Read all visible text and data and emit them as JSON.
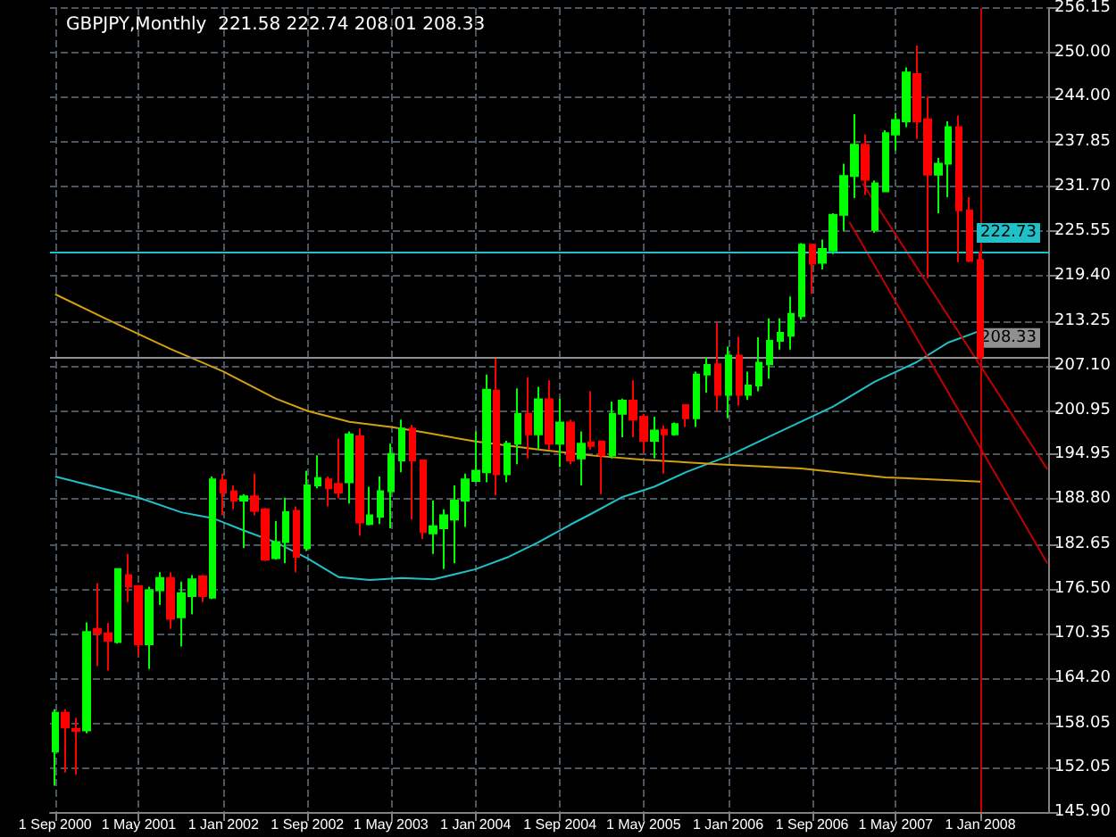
{
  "chart_data": {
    "type": "candlestick",
    "title": "GBPJPY,Monthly  221.58 222.74 208.01 208.33",
    "x": [
      "2000-09",
      "2000-10",
      "2000-11",
      "2000-12",
      "2001-01",
      "2001-02",
      "2001-03",
      "2001-04",
      "2001-05",
      "2001-06",
      "2001-07",
      "2001-08",
      "2001-09",
      "2001-10",
      "2001-11",
      "2001-12",
      "2002-01",
      "2002-02",
      "2002-03",
      "2002-04",
      "2002-05",
      "2002-06",
      "2002-07",
      "2002-08",
      "2002-09",
      "2002-10",
      "2002-11",
      "2002-12",
      "2003-01",
      "2003-02",
      "2003-03",
      "2003-04",
      "2003-05",
      "2003-06",
      "2003-07",
      "2003-08",
      "2003-09",
      "2003-10",
      "2003-11",
      "2003-12",
      "2004-01",
      "2004-02",
      "2004-03",
      "2004-04",
      "2004-05",
      "2004-06",
      "2004-07",
      "2004-08",
      "2004-09",
      "2004-10",
      "2004-11",
      "2004-12",
      "2005-01",
      "2005-02",
      "2005-03",
      "2005-04",
      "2005-05",
      "2005-06",
      "2005-07",
      "2005-08",
      "2005-09",
      "2005-10",
      "2005-11",
      "2005-12",
      "2006-01",
      "2006-02",
      "2006-03",
      "2006-04",
      "2006-05",
      "2006-06",
      "2006-07",
      "2006-08",
      "2006-09",
      "2006-10",
      "2006-11",
      "2006-12",
      "2007-01",
      "2007-02",
      "2007-03",
      "2007-04",
      "2007-05",
      "2007-06",
      "2007-07",
      "2007-08",
      "2007-09",
      "2007-10",
      "2007-11",
      "2007-12",
      "2008-01"
    ],
    "ohlc": [
      [
        154.2,
        160.0,
        149.5,
        159.5
      ],
      [
        159.5,
        160.0,
        151.3,
        157.5
      ],
      [
        157.3,
        158.8,
        151.0,
        157.0
      ],
      [
        157.1,
        171.9,
        156.7,
        170.6
      ],
      [
        171.0,
        177.3,
        165.9,
        170.4
      ],
      [
        170.4,
        171.8,
        165.3,
        169.4
      ],
      [
        169.2,
        179.3,
        169.0,
        179.2
      ],
      [
        178.4,
        181.3,
        174.7,
        176.8
      ],
      [
        176.9,
        177.0,
        167.3,
        168.9
      ],
      [
        168.9,
        176.8,
        165.5,
        176.3
      ],
      [
        176.3,
        178.8,
        174.3,
        178.0
      ],
      [
        178.0,
        178.8,
        171.0,
        172.4
      ],
      [
        172.6,
        177.5,
        168.6,
        175.9
      ],
      [
        175.5,
        178.4,
        173.0,
        177.8
      ],
      [
        178.2,
        178.4,
        174.7,
        175.5
      ],
      [
        175.3,
        191.9,
        175.1,
        191.5
      ],
      [
        191.4,
        192.3,
        186.6,
        189.7
      ],
      [
        189.9,
        190.7,
        187.4,
        188.6
      ],
      [
        188.6,
        189.5,
        182.1,
        189.2
      ],
      [
        189.2,
        192.3,
        186.6,
        187.2
      ],
      [
        187.4,
        187.6,
        180.3,
        180.5
      ],
      [
        180.7,
        185.8,
        180.5,
        182.9
      ],
      [
        182.9,
        189.0,
        180.0,
        187.0
      ],
      [
        187.2,
        187.8,
        178.8,
        180.9
      ],
      [
        182.1,
        192.7,
        181.7,
        190.7
      ],
      [
        190.7,
        194.8,
        190.3,
        191.7
      ],
      [
        191.5,
        191.9,
        187.8,
        190.3
      ],
      [
        190.9,
        197.1,
        188.9,
        189.7
      ],
      [
        191.1,
        198.1,
        188.2,
        197.7
      ],
      [
        197.4,
        198.5,
        183.8,
        185.6
      ],
      [
        185.4,
        190.5,
        185.2,
        186.6
      ],
      [
        186.4,
        191.9,
        185.4,
        189.9
      ],
      [
        189.9,
        196.4,
        184.8,
        195.0
      ],
      [
        194.1,
        199.7,
        192.5,
        198.5
      ],
      [
        198.5,
        199.0,
        186.0,
        194.1
      ],
      [
        194.1,
        194.1,
        183.3,
        184.3
      ],
      [
        184.1,
        188.6,
        181.3,
        185.1
      ],
      [
        184.8,
        187.4,
        179.2,
        186.6
      ],
      [
        186.0,
        190.7,
        180.0,
        188.6
      ],
      [
        188.6,
        192.3,
        185.0,
        191.5
      ],
      [
        191.3,
        198.1,
        191.1,
        192.7
      ],
      [
        192.5,
        205.9,
        191.1,
        203.8
      ],
      [
        203.7,
        208.1,
        189.3,
        192.2
      ],
      [
        192.2,
        196.8,
        191.1,
        196.4
      ],
      [
        196.4,
        204.0,
        193.6,
        200.5
      ],
      [
        200.5,
        205.5,
        194.4,
        197.7
      ],
      [
        197.7,
        204.2,
        195.6,
        202.5
      ],
      [
        202.5,
        205.1,
        195.6,
        196.4
      ],
      [
        196.4,
        202.6,
        193.2,
        199.3
      ],
      [
        199.3,
        199.7,
        193.6,
        194.1
      ],
      [
        194.4,
        198.1,
        190.7,
        196.4
      ],
      [
        196.6,
        203.6,
        195.6,
        196.1
      ],
      [
        196.7,
        196.8,
        189.5,
        194.8
      ],
      [
        194.8,
        202.2,
        194.4,
        200.5
      ],
      [
        200.5,
        202.6,
        197.3,
        202.3
      ],
      [
        202.3,
        205.1,
        197.3,
        199.7
      ],
      [
        200.1,
        200.5,
        195.2,
        196.8
      ],
      [
        196.8,
        200.1,
        194.4,
        198.2
      ],
      [
        198.3,
        198.9,
        192.3,
        197.7
      ],
      [
        197.7,
        199.3,
        197.5,
        199.1
      ],
      [
        201.7,
        201.7,
        198.7,
        199.9
      ],
      [
        199.9,
        206.3,
        198.7,
        205.9
      ],
      [
        205.9,
        208.2,
        203.4,
        207.2
      ],
      [
        207.3,
        213.0,
        200.9,
        203.1
      ],
      [
        203.1,
        209.7,
        199.9,
        208.5
      ],
      [
        208.5,
        211.1,
        201.6,
        203.1
      ],
      [
        203.1,
        206.3,
        202.4,
        204.4
      ],
      [
        204.4,
        211.0,
        203.6,
        207.5
      ],
      [
        207.3,
        213.6,
        205.3,
        210.5
      ],
      [
        210.5,
        213.6,
        209.3,
        211.6
      ],
      [
        211.2,
        216.6,
        209.3,
        214.2
      ],
      [
        213.9,
        223.9,
        213.4,
        223.7
      ],
      [
        223.7,
        223.7,
        217.0,
        221.1
      ],
      [
        221.2,
        224.4,
        220.3,
        223.1
      ],
      [
        222.9,
        228.0,
        222.4,
        227.8
      ],
      [
        227.8,
        234.8,
        225.6,
        233.1
      ],
      [
        233.1,
        241.6,
        230.1,
        237.4
      ],
      [
        237.4,
        238.8,
        230.5,
        232.6
      ],
      [
        225.7,
        232.5,
        225.3,
        232.1
      ],
      [
        231.0,
        239.4,
        230.9,
        239.0
      ],
      [
        238.8,
        241.8,
        236.6,
        240.8
      ],
      [
        240.6,
        248.0,
        239.8,
        247.3
      ],
      [
        247.1,
        251.0,
        238.2,
        240.6
      ],
      [
        240.9,
        244.0,
        219.1,
        233.3
      ],
      [
        233.3,
        235.6,
        228.0,
        234.8
      ],
      [
        234.8,
        240.6,
        230.2,
        239.8
      ],
      [
        239.8,
        241.4,
        221.3,
        228.4
      ],
      [
        228.4,
        230.2,
        221.3,
        221.5
      ],
      [
        221.58,
        222.74,
        208.01,
        208.33
      ]
    ],
    "series": [
      {
        "type": "line",
        "color": "#20c0c8",
        "x": [
          "2000-09",
          "2001-05",
          "2001-09",
          "2001-12",
          "2002-03",
          "2002-06",
          "2002-09",
          "2002-12",
          "2003-03",
          "2003-06",
          "2003-09",
          "2004-01",
          "2004-04",
          "2004-07",
          "2004-10",
          "2004-12",
          "2005-03",
          "2005-06",
          "2005-09",
          "2006-01",
          "2006-05",
          "2006-11",
          "2007-03",
          "2007-07",
          "2007-10",
          "2008-01"
        ],
        "values": [
          191.9,
          189.0,
          187.0,
          186.2,
          184.5,
          182.9,
          180.7,
          178.1,
          177.7,
          178.0,
          177.8,
          179.2,
          180.8,
          182.9,
          185.3,
          186.8,
          189.1,
          190.5,
          192.5,
          194.7,
          197.4,
          201.5,
          204.9,
          207.6,
          210.3,
          211.9
        ]
      },
      {
        "type": "line",
        "color": "#d4a010",
        "x": [
          "2000-09",
          "2001-02",
          "2001-08",
          "2002-01",
          "2002-06",
          "2002-09",
          "2003-01",
          "2003-05",
          "2003-08",
          "2004-01",
          "2004-07",
          "2004-12",
          "2005-05",
          "2005-12",
          "2006-08",
          "2007-04",
          "2008-01"
        ],
        "values": [
          216.9,
          213.4,
          209.4,
          206.3,
          202.6,
          200.9,
          199.4,
          198.7,
          198.0,
          196.7,
          195.6,
          194.8,
          194.2,
          193.6,
          193.0,
          191.8,
          191.2
        ]
      },
      {
        "type": "line",
        "color": "#c00000",
        "x": [
          "2006-12-18",
          "2008-07-13"
        ],
        "values": [
          226.8,
          180.0
        ]
      },
      {
        "type": "line",
        "color": "#c00000",
        "x": [
          "2007-01-25",
          "2008-07-13"
        ],
        "values": [
          232.1,
          192.9
        ]
      }
    ],
    "xlim": [
      "2000-08-17",
      "2008-07-18"
    ],
    "xticks": [
      {
        "value": "2000-09",
        "label": "1 Sep 2000"
      },
      {
        "value": "2001-05",
        "label": "1 May 2001"
      },
      {
        "value": "2002-01",
        "label": "1 Jan 2002"
      },
      {
        "value": "2002-09",
        "label": "1 Sep 2002"
      },
      {
        "value": "2003-05",
        "label": "1 May 2003"
      },
      {
        "value": "2004-01",
        "label": "1 Jan 2004"
      },
      {
        "value": "2004-09",
        "label": "1 Sep 2004"
      },
      {
        "value": "2005-05",
        "label": "1 May 2005"
      },
      {
        "value": "2006-01",
        "label": "1 Jan 2006"
      },
      {
        "value": "2006-09",
        "label": "1 Sep 2006"
      },
      {
        "value": "2007-05",
        "label": "1 May 2007"
      },
      {
        "value": "2008-01",
        "label": "1 Jan 2008"
      }
    ],
    "ylim": [
      145.9,
      256.15
    ],
    "yticks": [
      {
        "value": 145.9,
        "label": "145.90"
      },
      152.05,
      158.05,
      {
        "value": 164.2,
        "label": "164.20"
      },
      170.35,
      {
        "value": 176.5,
        "label": "176.50"
      },
      182.65,
      {
        "value": 188.8,
        "label": "188.80"
      },
      194.95,
      200.95,
      {
        "value": 207.1,
        "label": "207.10"
      },
      213.25,
      {
        "value": 219.4,
        "label": "219.40"
      },
      225.55,
      {
        "value": 231.7,
        "label": "231.70"
      },
      237.85,
      {
        "value": 244,
        "label": "244.00"
      },
      {
        "value": 250,
        "label": "250.00"
      },
      256.15
    ],
    "ref_lines": [
      {
        "axis": "y",
        "value": 222.73,
        "label": "222.73",
        "color": "#20c0c8"
      },
      {
        "axis": "y",
        "value": 208.33,
        "label": "208.33",
        "color": "#909090"
      },
      {
        "axis": "x",
        "value": "2008-01",
        "label": null,
        "color": "#d00000"
      }
    ],
    "grid": true,
    "marker": "none"
  }
}
